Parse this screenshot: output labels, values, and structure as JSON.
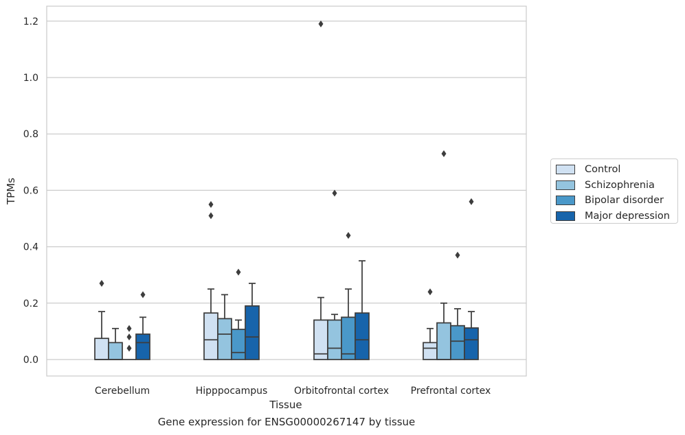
{
  "chart_data": {
    "type": "boxplot",
    "title": "",
    "xlabel": "Tissue",
    "ylabel": "TPMs",
    "caption": "Gene expression for ENSG00000267147 by tissue",
    "ylim": [
      -0.06,
      1.25
    ],
    "yticks": [
      "0.0",
      "0.2",
      "0.4",
      "0.6",
      "0.8",
      "1.0",
      "1.2"
    ],
    "grid": "horizontal",
    "legend_position": "right",
    "categories": [
      "Cerebellum",
      "Hipppocampus",
      "Orbitofrontal cortex",
      "Prefrontal cortex"
    ],
    "series": [
      {
        "name": "Control",
        "color": "#d0e1f2",
        "boxes": [
          {
            "min": 0.0,
            "q1": 0.0,
            "median": 0.0,
            "q3": 0.075,
            "max": 0.17,
            "outliers": [
              0.27
            ]
          },
          {
            "min": 0.0,
            "q1": 0.0,
            "median": 0.07,
            "q3": 0.165,
            "max": 0.25,
            "outliers": [
              0.51,
              0.55
            ]
          },
          {
            "min": 0.0,
            "q1": 0.0,
            "median": 0.02,
            "q3": 0.14,
            "max": 0.22,
            "outliers": [
              1.19
            ]
          },
          {
            "min": 0.0,
            "q1": 0.0,
            "median": 0.04,
            "q3": 0.06,
            "max": 0.11,
            "outliers": [
              0.24
            ]
          }
        ]
      },
      {
        "name": "Schizophrenia",
        "color": "#94c4df",
        "boxes": [
          {
            "min": 0.0,
            "q1": 0.0,
            "median": 0.0,
            "q3": 0.06,
            "max": 0.11,
            "outliers": []
          },
          {
            "min": 0.0,
            "q1": 0.0,
            "median": 0.09,
            "q3": 0.145,
            "max": 0.23,
            "outliers": []
          },
          {
            "min": 0.0,
            "q1": 0.0,
            "median": 0.04,
            "q3": 0.14,
            "max": 0.16,
            "outliers": [
              0.59
            ]
          },
          {
            "min": 0.0,
            "q1": 0.0,
            "median": 0.0,
            "q3": 0.13,
            "max": 0.2,
            "outliers": [
              0.73
            ]
          }
        ]
      },
      {
        "name": "Bipolar disorder",
        "color": "#4a98c9",
        "boxes": [
          {
            "min": 0.0,
            "q1": 0.0,
            "median": 0.0,
            "q3": 0.0,
            "max": 0.0,
            "outliers": [
              0.04,
              0.08,
              0.11
            ]
          },
          {
            "min": 0.0,
            "q1": 0.0,
            "median": 0.025,
            "q3": 0.107,
            "max": 0.14,
            "outliers": [
              0.31
            ]
          },
          {
            "min": 0.0,
            "q1": 0.0,
            "median": 0.02,
            "q3": 0.15,
            "max": 0.25,
            "outliers": [
              0.44
            ]
          },
          {
            "min": 0.0,
            "q1": 0.0,
            "median": 0.065,
            "q3": 0.12,
            "max": 0.18,
            "outliers": [
              0.37
            ]
          }
        ]
      },
      {
        "name": "Major depression",
        "color": "#1764ab",
        "boxes": [
          {
            "min": 0.0,
            "q1": 0.0,
            "median": 0.06,
            "q3": 0.09,
            "max": 0.15,
            "outliers": [
              0.23
            ]
          },
          {
            "min": 0.0,
            "q1": 0.0,
            "median": 0.08,
            "q3": 0.19,
            "max": 0.27,
            "outliers": []
          },
          {
            "min": 0.0,
            "q1": 0.0,
            "median": 0.07,
            "q3": 0.165,
            "max": 0.35,
            "outliers": []
          },
          {
            "min": 0.0,
            "q1": 0.0,
            "median": 0.07,
            "q3": 0.112,
            "max": 0.17,
            "outliers": [
              0.56
            ]
          }
        ]
      }
    ]
  }
}
